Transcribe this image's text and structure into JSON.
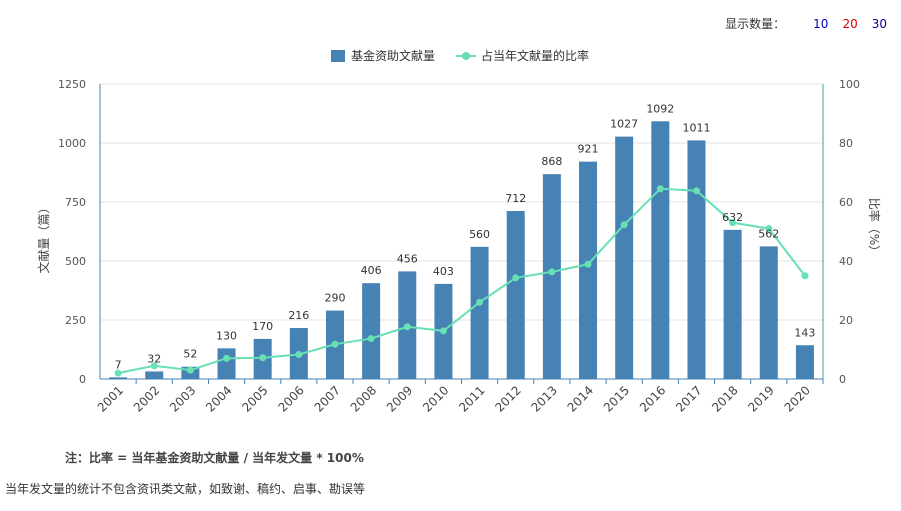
{
  "display_count": {
    "label": "显示数量：",
    "options": [
      {
        "label": "10",
        "color": "#0000cc"
      },
      {
        "label": "20",
        "color": "#dd0000"
      },
      {
        "label": "30",
        "color": "#000099"
      }
    ]
  },
  "note": "注：比率 = 当年基金资助文献量 / 当年发文量 * 100%",
  "footer": "当年发文量的统计不包含资讯类文献，如致谢、稿约、启事、勘误等",
  "chart_data": {
    "type": "bar",
    "categories": [
      "2001",
      "2002",
      "2003",
      "2004",
      "2005",
      "2006",
      "2007",
      "2008",
      "2009",
      "2010",
      "2011",
      "2012",
      "2013",
      "2014",
      "2015",
      "2016",
      "2017",
      "2018",
      "2019",
      "2020"
    ],
    "series": [
      {
        "name": "基金资助文献量",
        "type": "bar",
        "axis": "left",
        "color": "#4682b4",
        "values": [
          7,
          32,
          52,
          130,
          170,
          216,
          290,
          406,
          456,
          403,
          560,
          712,
          868,
          921,
          1027,
          1092,
          1011,
          632,
          562,
          143
        ]
      },
      {
        "name": "占当年文献量的比率",
        "type": "line",
        "axis": "right",
        "color": "#66e0b4",
        "values": [
          2,
          4.5,
          3,
          7,
          7.2,
          8.3,
          11.8,
          13.7,
          17.7,
          16.3,
          26,
          34.3,
          36.3,
          38.9,
          52.3,
          64.5,
          63.8,
          53,
          51,
          35
        ]
      }
    ],
    "ylabel": "文献量（篇）",
    "ylabel_right": "比率（%）",
    "ylim": [
      0,
      1250
    ],
    "yticks": [
      0,
      250,
      500,
      750,
      1000,
      1250
    ],
    "ylim_right": [
      0,
      100
    ],
    "yticks_right": [
      0,
      20,
      40,
      60,
      80,
      100
    ],
    "grid": true,
    "legend": "top-center",
    "data_labels": true
  }
}
